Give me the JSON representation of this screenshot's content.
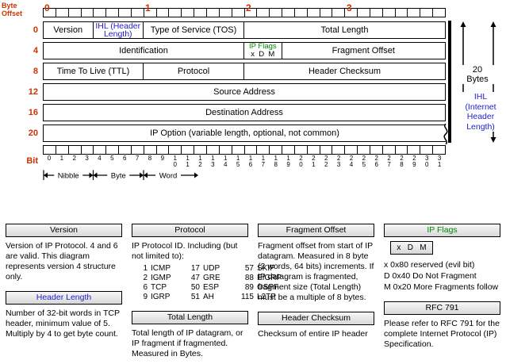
{
  "colors": {
    "red": "#cc3300",
    "blue": "#2222cc",
    "green": "#008800"
  },
  "diagram": {
    "byte_offset_label": [
      "Byte",
      "Offset"
    ],
    "bit_label": "Bit",
    "byte_numbers": [
      "0",
      "1",
      "2",
      "3"
    ],
    "scale_labels": [
      "Nibble",
      "Byte",
      "Word"
    ],
    "right": {
      "twenty": [
        "20",
        "Bytes"
      ],
      "ihl": [
        "IHL",
        "(Internet",
        "Header",
        "Length)"
      ]
    },
    "rows": [
      {
        "offset": "0",
        "fields": [
          {
            "label": "Version",
            "bits": 4
          },
          {
            "label": "IHL (Header Length)",
            "bits": 4,
            "color": "blue"
          },
          {
            "label": "Type of Service (TOS)",
            "bits": 8
          },
          {
            "label": "Total Length",
            "bits": 16
          }
        ]
      },
      {
        "offset": "4",
        "fields": [
          {
            "label": "Identification",
            "bits": 16
          },
          {
            "label": "IP Flags",
            "bits": 3,
            "color": "green",
            "flags": "x  D  M"
          },
          {
            "label": "Fragment Offset",
            "bits": 13
          }
        ]
      },
      {
        "offset": "8",
        "fields": [
          {
            "label": "Time To Live (TTL)",
            "bits": 8
          },
          {
            "label": "Protocol",
            "bits": 8
          },
          {
            "label": "Header Checksum",
            "bits": 16
          }
        ]
      },
      {
        "offset": "12",
        "fields": [
          {
            "label": "Source Address",
            "bits": 32
          }
        ]
      },
      {
        "offset": "16",
        "fields": [
          {
            "label": "Destination Address",
            "bits": 32
          }
        ]
      },
      {
        "offset": "20",
        "fields": [
          {
            "label": "IP Option (variable length, optional, not common)",
            "bits": 32,
            "wavy": true
          }
        ]
      }
    ]
  },
  "notes": {
    "columns": [
      [
        {
          "title": "Version",
          "body": "Version of IP Protocol.  4 and 6 are valid.  This diagram represents version 4 structure only."
        },
        {
          "title": "Header Length",
          "title_color": "blue",
          "body": "Number of 32-bit words in TCP header, minimum value of 5.  Multiply by 4 to get byte count."
        }
      ],
      [
        {
          "title": "Protocol",
          "body": "IP Protocol ID.  Including (but not limited to):",
          "table": [
            [
              "1",
              "ICMP",
              "17",
              "UDP",
              "57",
              "SKIP"
            ],
            [
              "2",
              "IGMP",
              "47",
              "GRE",
              "88",
              "EIGRP"
            ],
            [
              "6",
              "TCP",
              "50",
              "ESP",
              "89",
              "OSPF"
            ],
            [
              "9",
              "IGRP",
              "51",
              "AH",
              "115",
              "L2TP"
            ]
          ]
        },
        {
          "title": "Total Length",
          "body": "Total length of IP datagram, or IP fragment if fragmented.  Measured in Bytes."
        }
      ],
      [
        {
          "title": "Fragment Offset",
          "body": "Fragment offset from start of IP datagram.  Measured in 8 byte (2 words, 64 bits) increments.  If IP datagram is fragmented, fragment size (Total Length) must be a multiple of 8 bytes."
        },
        {
          "title": "Header Checksum",
          "body": "Checksum of entire IP header"
        }
      ],
      [
        {
          "title": "IP Flags",
          "title_color": "green",
          "flags_box": "x   D   M",
          "body_lines": [
            "x  0x80 reserved (evil bit)",
            "D  0x40 Do Not Fragment",
            "M  0x20 More Fragments follow"
          ]
        },
        {
          "title": "RFC 791",
          "body": "Please refer to RFC 791 for the complete Internet Protocol (IP) Specification."
        }
      ]
    ]
  }
}
